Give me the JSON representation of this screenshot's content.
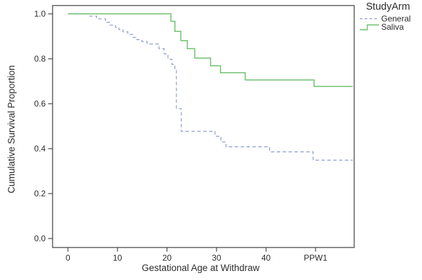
{
  "figure": {
    "background": "#ffffff"
  },
  "legend": {
    "title": "StudyArm",
    "items": [
      {
        "label": "General",
        "color": "#8e9cc9",
        "style": "dashed"
      },
      {
        "label": "Saliva",
        "color": "#6fc06f",
        "style": "solid-step"
      }
    ]
  },
  "axes": {
    "frame_color": "#4a4a4a",
    "tick_color": "#4a4a4a",
    "text_color": "#2b2b2b",
    "tick_font_size": 12,
    "label_font_size": 13.5
  },
  "chart_data": {
    "type": "line",
    "subtype": "kaplan-meier-step",
    "title": "",
    "xlabel": "Gestational Age at Withdraw",
    "ylabel": "Cumulative Survival Proportion",
    "legend_position": "top-right-outside",
    "grid": false,
    "xlim": [
      -3.1,
      57.8
    ],
    "ylim": [
      -0.04,
      1.037
    ],
    "x_ticks": [
      {
        "value": 0,
        "label": "0"
      },
      {
        "value": 10,
        "label": "10"
      },
      {
        "value": 20,
        "label": "20"
      },
      {
        "value": 30,
        "label": "30"
      },
      {
        "value": 40,
        "label": "40"
      },
      {
        "value": 50,
        "label": "PPW1"
      }
    ],
    "y_ticks": [
      {
        "value": 0.0,
        "label": "0.0"
      },
      {
        "value": 0.2,
        "label": "0.2"
      },
      {
        "value": 0.4,
        "label": "0.4"
      },
      {
        "value": 0.6,
        "label": "0.6"
      },
      {
        "value": 0.8,
        "label": "0.8"
      },
      {
        "value": 1.0,
        "label": "1.0"
      }
    ],
    "series": [
      {
        "name": "General",
        "color": "#8e9cc9",
        "dashed": true,
        "line_width": 1.2,
        "end_x": 57.5,
        "steps": [
          [
            0,
            1.0
          ],
          [
            4.2,
            0.99
          ],
          [
            5.8,
            0.978
          ],
          [
            7.6,
            0.962
          ],
          [
            8.4,
            0.95
          ],
          [
            9.6,
            0.94
          ],
          [
            10.3,
            0.93
          ],
          [
            11.1,
            0.92
          ],
          [
            12.1,
            0.908
          ],
          [
            13.1,
            0.895
          ],
          [
            13.9,
            0.885
          ],
          [
            14.9,
            0.877
          ],
          [
            16,
            0.866
          ],
          [
            18.4,
            0.845
          ],
          [
            19.4,
            0.822
          ],
          [
            20.2,
            0.798
          ],
          [
            21.0,
            0.775
          ],
          [
            21.6,
            0.752
          ],
          [
            21.9,
            0.578
          ],
          [
            22.9,
            0.477
          ],
          [
            29.7,
            0.455
          ],
          [
            30.9,
            0.43
          ],
          [
            31.9,
            0.408
          ],
          [
            40.7,
            0.386
          ],
          [
            49.5,
            0.349
          ]
        ]
      },
      {
        "name": "Saliva",
        "color": "#6fc06f",
        "dashed": false,
        "line_width": 1.5,
        "end_x": 57.5,
        "steps": [
          [
            0,
            1.0
          ],
          [
            20.8,
            0.967
          ],
          [
            21.6,
            0.922
          ],
          [
            22.8,
            0.881
          ],
          [
            24.1,
            0.845
          ],
          [
            25.6,
            0.803
          ],
          [
            28.8,
            0.769
          ],
          [
            30.8,
            0.738
          ],
          [
            35.8,
            0.706
          ],
          [
            49.7,
            0.677
          ]
        ]
      }
    ]
  }
}
